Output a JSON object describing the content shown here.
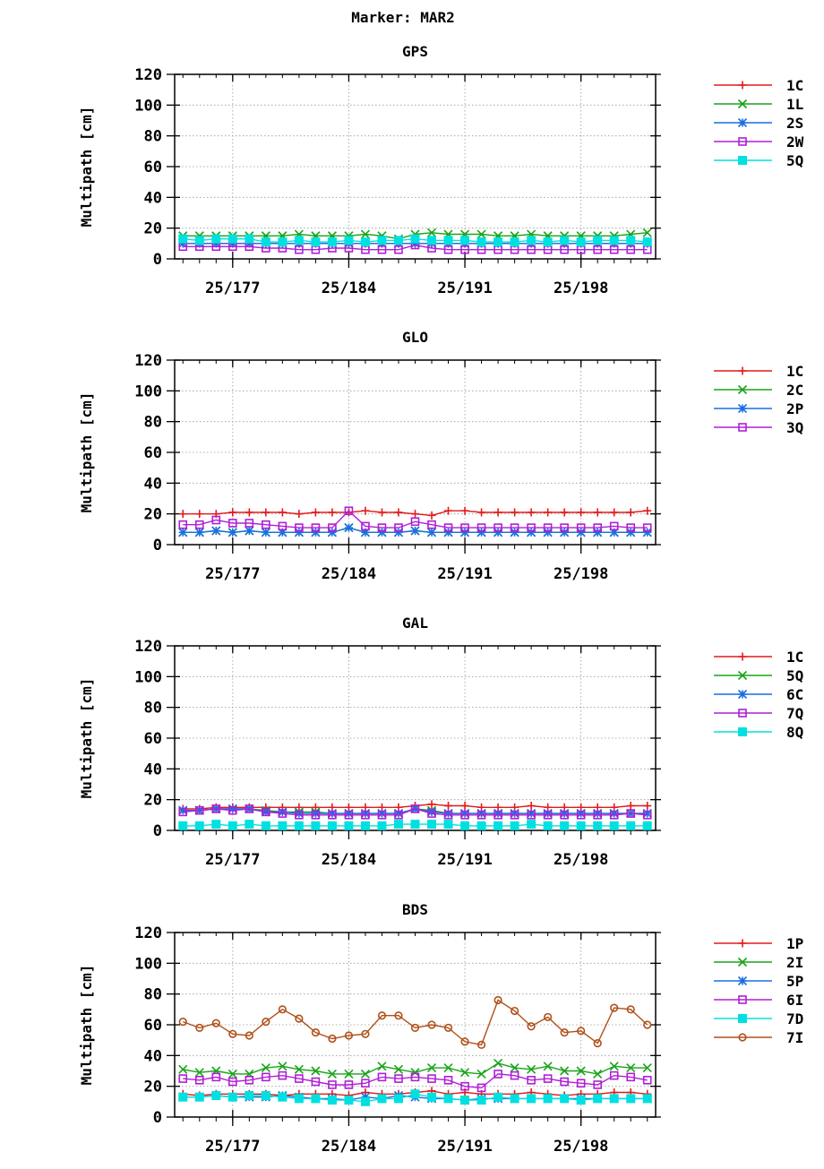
{
  "figure": {
    "title": "Marker: MAR2"
  },
  "axis": {
    "ylabel": "Multipath [cm]",
    "yticks": [
      0,
      20,
      40,
      60,
      80,
      100,
      120
    ],
    "ylim": [
      0,
      120
    ],
    "xticks": [
      {
        "value": 177,
        "label": "25/177"
      },
      {
        "value": 184,
        "label": "25/184"
      },
      {
        "value": 191,
        "label": "25/191"
      },
      {
        "value": 198,
        "label": "25/198"
      }
    ],
    "xlim": [
      173.5,
      202.5
    ]
  },
  "colors": {
    "red": "#e41a1c",
    "green": "#1aa31a",
    "blue": "#1a6fe0",
    "purple": "#b01ed8",
    "cyan": "#00e0e0",
    "brown": "#b0501a"
  },
  "chart_data": [
    {
      "type": "line",
      "title": "GPS",
      "x": [
        174,
        175,
        176,
        177,
        178,
        179,
        180,
        181,
        182,
        183,
        184,
        185,
        186,
        187,
        188,
        189,
        190,
        191,
        192,
        193,
        194,
        195,
        196,
        197,
        198,
        199,
        200,
        201,
        202
      ],
      "series": [
        {
          "name": "1C",
          "color": "red",
          "marker": "plus",
          "values": [
            10,
            10,
            10,
            10,
            10,
            10,
            10,
            10,
            10,
            10,
            10,
            10,
            10,
            10,
            10,
            10,
            10,
            10,
            10,
            10,
            10,
            10,
            10,
            10,
            10,
            10,
            10,
            10,
            10
          ]
        },
        {
          "name": "1L",
          "color": "green",
          "marker": "cross",
          "values": [
            15,
            15,
            15,
            15,
            15,
            15,
            15,
            16,
            15,
            15,
            15,
            16,
            15,
            13,
            16,
            17,
            16,
            16,
            16,
            15,
            15,
            16,
            15,
            15,
            15,
            15,
            15,
            16,
            17
          ]
        },
        {
          "name": "2S",
          "color": "blue",
          "marker": "star",
          "values": [
            10,
            10,
            10,
            10,
            10,
            10,
            10,
            10,
            10,
            10,
            10,
            10,
            10,
            10,
            10,
            10,
            10,
            10,
            10,
            10,
            10,
            10,
            10,
            10,
            10,
            10,
            10,
            10,
            10
          ]
        },
        {
          "name": "2W",
          "color": "purple",
          "marker": "square-open",
          "values": [
            8,
            8,
            8,
            8,
            8,
            7,
            7,
            6,
            6,
            7,
            7,
            6,
            6,
            6,
            9,
            7,
            6,
            6,
            6,
            6,
            6,
            6,
            6,
            6,
            6,
            6,
            6,
            6,
            6
          ]
        },
        {
          "name": "5Q",
          "color": "cyan",
          "marker": "square-filled",
          "values": [
            13,
            12,
            13,
            13,
            13,
            11,
            11,
            12,
            11,
            11,
            12,
            11,
            12,
            12,
            13,
            12,
            12,
            12,
            11,
            11,
            11,
            12,
            11,
            12,
            11,
            12,
            12,
            12,
            11
          ]
        }
      ]
    },
    {
      "type": "line",
      "title": "GLO",
      "x": [
        174,
        175,
        176,
        177,
        178,
        179,
        180,
        181,
        182,
        183,
        184,
        185,
        186,
        187,
        188,
        189,
        190,
        191,
        192,
        193,
        194,
        195,
        196,
        197,
        198,
        199,
        200,
        201,
        202
      ],
      "series": [
        {
          "name": "1C",
          "color": "red",
          "marker": "plus",
          "values": [
            20,
            20,
            20,
            21,
            21,
            21,
            21,
            20,
            21,
            21,
            21,
            22,
            21,
            21,
            20,
            19,
            22,
            22,
            21,
            21,
            21,
            21,
            21,
            21,
            21,
            21,
            21,
            21,
            22
          ]
        },
        {
          "name": "2C",
          "color": "green",
          "marker": "cross",
          "values": [
            8,
            8,
            9,
            8,
            9,
            8,
            8,
            8,
            8,
            8,
            11,
            8,
            8,
            8,
            9,
            8,
            8,
            8,
            8,
            8,
            8,
            8,
            8,
            8,
            8,
            8,
            8,
            8,
            8
          ]
        },
        {
          "name": "2P",
          "color": "blue",
          "marker": "star",
          "values": [
            8,
            8,
            9,
            8,
            9,
            8,
            8,
            8,
            8,
            8,
            11,
            8,
            8,
            8,
            9,
            8,
            8,
            8,
            8,
            8,
            8,
            8,
            8,
            8,
            8,
            8,
            8,
            8,
            8
          ]
        },
        {
          "name": "3Q",
          "color": "purple",
          "marker": "square-open",
          "values": [
            13,
            13,
            16,
            14,
            14,
            13,
            12,
            11,
            11,
            11,
            22,
            12,
            11,
            11,
            15,
            13,
            11,
            11,
            11,
            11,
            11,
            11,
            11,
            11,
            11,
            11,
            12,
            11,
            11
          ]
        }
      ]
    },
    {
      "type": "line",
      "title": "GAL",
      "x": [
        174,
        175,
        176,
        177,
        178,
        179,
        180,
        181,
        182,
        183,
        184,
        185,
        186,
        187,
        188,
        189,
        190,
        191,
        192,
        193,
        194,
        195,
        196,
        197,
        198,
        199,
        200,
        201,
        202
      ],
      "series": [
        {
          "name": "1C",
          "color": "red",
          "marker": "plus",
          "values": [
            14,
            14,
            15,
            15,
            15,
            15,
            15,
            15,
            15,
            15,
            15,
            15,
            15,
            15,
            16,
            17,
            16,
            16,
            15,
            15,
            15,
            16,
            15,
            15,
            15,
            15,
            15,
            16,
            16
          ]
        },
        {
          "name": "5Q",
          "color": "green",
          "marker": "cross",
          "values": [
            13,
            13,
            14,
            14,
            14,
            13,
            12,
            12,
            12,
            11,
            11,
            11,
            11,
            11,
            14,
            13,
            11,
            11,
            11,
            11,
            11,
            11,
            11,
            11,
            11,
            11,
            11,
            11,
            11
          ]
        },
        {
          "name": "6C",
          "color": "blue",
          "marker": "star",
          "values": [
            13,
            13,
            14,
            14,
            14,
            12,
            12,
            11,
            11,
            11,
            11,
            11,
            11,
            11,
            14,
            12,
            11,
            11,
            11,
            11,
            11,
            11,
            11,
            11,
            11,
            11,
            11,
            11,
            11
          ]
        },
        {
          "name": "7Q",
          "color": "purple",
          "marker": "square-open",
          "values": [
            12,
            13,
            14,
            13,
            14,
            12,
            11,
            10,
            10,
            10,
            10,
            10,
            10,
            10,
            14,
            11,
            10,
            10,
            10,
            10,
            10,
            10,
            10,
            10,
            10,
            10,
            10,
            11,
            10
          ]
        },
        {
          "name": "8Q",
          "color": "cyan",
          "marker": "square-filled",
          "values": [
            3,
            3,
            4,
            3,
            4,
            3,
            3,
            3,
            3,
            3,
            3,
            3,
            3,
            4,
            4,
            4,
            4,
            3,
            3,
            3,
            3,
            4,
            3,
            3,
            3,
            3,
            3,
            3,
            3
          ]
        }
      ]
    },
    {
      "type": "line",
      "title": "BDS",
      "x": [
        174,
        175,
        176,
        177,
        178,
        179,
        180,
        181,
        182,
        183,
        184,
        185,
        186,
        187,
        188,
        189,
        190,
        191,
        192,
        193,
        194,
        195,
        196,
        197,
        198,
        199,
        200,
        201,
        202
      ],
      "series": [
        {
          "name": "1P",
          "color": "red",
          "marker": "plus",
          "values": [
            15,
            14,
            15,
            15,
            15,
            15,
            14,
            15,
            15,
            15,
            14,
            16,
            15,
            15,
            16,
            17,
            15,
            16,
            15,
            15,
            15,
            16,
            15,
            14,
            15,
            15,
            16,
            16,
            15
          ]
        },
        {
          "name": "2I",
          "color": "green",
          "marker": "cross",
          "values": [
            31,
            29,
            30,
            28,
            28,
            32,
            33,
            31,
            30,
            28,
            28,
            28,
            33,
            31,
            29,
            32,
            32,
            29,
            28,
            35,
            32,
            31,
            33,
            30,
            30,
            28,
            33,
            32,
            32
          ]
        },
        {
          "name": "5P",
          "color": "blue",
          "marker": "star",
          "values": [
            13,
            13,
            14,
            13,
            13,
            13,
            14,
            13,
            12,
            12,
            11,
            13,
            12,
            14,
            13,
            12,
            12,
            11,
            12,
            12,
            12,
            12,
            12,
            12,
            12,
            12,
            12,
            12,
            12
          ]
        },
        {
          "name": "6I",
          "color": "purple",
          "marker": "square-open",
          "values": [
            25,
            24,
            26,
            23,
            24,
            26,
            27,
            25,
            23,
            21,
            21,
            22,
            26,
            25,
            26,
            25,
            24,
            20,
            19,
            28,
            27,
            24,
            25,
            23,
            22,
            21,
            27,
            26,
            24
          ]
        },
        {
          "name": "7D",
          "color": "cyan",
          "marker": "square-filled",
          "values": [
            13,
            13,
            14,
            13,
            14,
            14,
            13,
            12,
            12,
            11,
            11,
            10,
            12,
            12,
            15,
            13,
            12,
            11,
            11,
            13,
            12,
            12,
            12,
            12,
            11,
            12,
            12,
            12,
            12
          ]
        },
        {
          "name": "7I",
          "color": "brown",
          "marker": "circle-open",
          "values": [
            62,
            58,
            61,
            54,
            53,
            62,
            70,
            64,
            55,
            51,
            53,
            54,
            66,
            66,
            58,
            60,
            58,
            49,
            47,
            76,
            69,
            59,
            65,
            55,
            56,
            48,
            71,
            70,
            60
          ]
        }
      ]
    }
  ]
}
